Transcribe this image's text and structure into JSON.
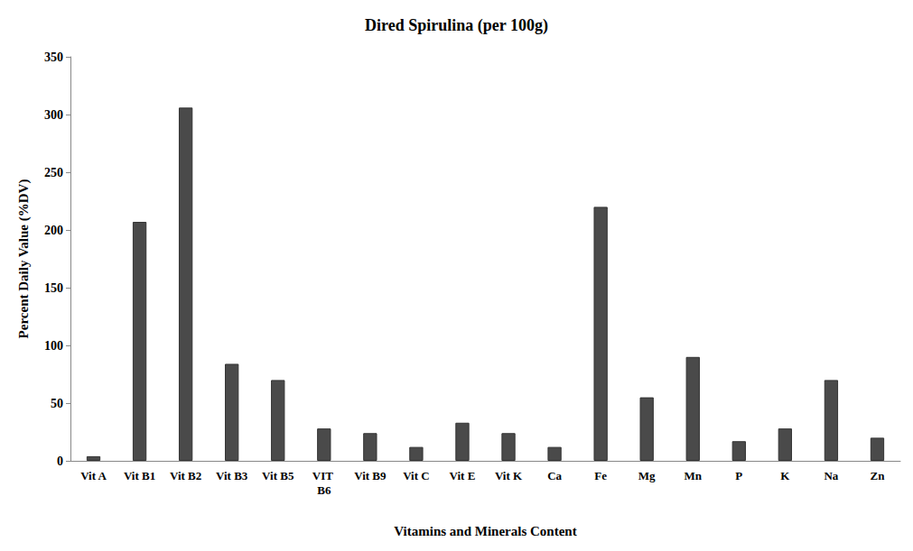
{
  "chart_data": {
    "type": "bar",
    "title": "Dired Spirulina (per 100g)",
    "x_label": "Vitamins and Minerals Content",
    "y_label": "Percent Daily Value (%DV)",
    "categories": [
      "Vit A",
      "Vit B1",
      "Vit B2",
      "Vit B3",
      "Vit B5",
      "VIT B6",
      "Vit B9",
      "Vit C",
      "Vit E",
      "Vit K",
      "Ca",
      "Fe",
      "Mg",
      "Mn",
      "P",
      "K",
      "Na",
      "Zn"
    ],
    "values": [
      4,
      207,
      306,
      84,
      70,
      28,
      24,
      12,
      33,
      24,
      12,
      220,
      55,
      90,
      17,
      28,
      70,
      20
    ],
    "color": "#4a4a4a",
    "ylim": [
      0,
      350
    ],
    "yticks": [
      0,
      50,
      100,
      150,
      200,
      250,
      300,
      350
    ],
    "grid": false
  }
}
